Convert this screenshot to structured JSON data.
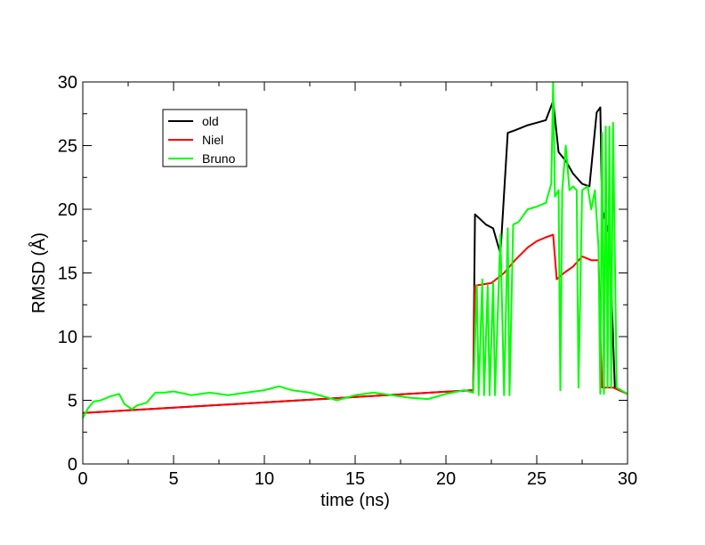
{
  "chart_data": {
    "type": "line",
    "title": "",
    "xlabel": "time (ns)",
    "ylabel": "RMSD (Å)",
    "xlim": [
      0,
      30
    ],
    "ylim": [
      0,
      30
    ],
    "x_ticks": [
      "0",
      "5",
      "10",
      "15",
      "20",
      "25",
      "30"
    ],
    "y_ticks": [
      "0",
      "5",
      "10",
      "15",
      "20",
      "25",
      "30"
    ],
    "grid": false,
    "legend_position": "top-left",
    "series": [
      {
        "name": "old",
        "color": "#000000",
        "points": [
          [
            0,
            4.0
          ],
          [
            21.5,
            5.8
          ],
          [
            21.6,
            19.6
          ],
          [
            21.9,
            19.2
          ],
          [
            22.2,
            18.8
          ],
          [
            22.6,
            18.5
          ],
          [
            23.0,
            16.5
          ],
          [
            23.4,
            26.0
          ],
          [
            23.8,
            26.2
          ],
          [
            24.5,
            26.6
          ],
          [
            25.0,
            26.8
          ],
          [
            25.5,
            27.0
          ],
          [
            25.9,
            28.5
          ],
          [
            26.2,
            24.5
          ],
          [
            26.6,
            23.8
          ],
          [
            27.0,
            22.8
          ],
          [
            27.5,
            22.0
          ],
          [
            27.9,
            21.8
          ],
          [
            28.3,
            27.6
          ],
          [
            28.5,
            28.0
          ],
          [
            28.6,
            20.0
          ],
          [
            29.0,
            18.0
          ],
          [
            29.3,
            6.0
          ],
          [
            30,
            5.5
          ]
        ]
      },
      {
        "name": "Niel",
        "color": "#ff0000",
        "points": [
          [
            0,
            4.0
          ],
          [
            21.5,
            5.8
          ],
          [
            21.6,
            14.0
          ],
          [
            22.5,
            14.2
          ],
          [
            23.2,
            15.0
          ],
          [
            23.8,
            16.0
          ],
          [
            24.5,
            17.0
          ],
          [
            25.0,
            17.5
          ],
          [
            25.5,
            17.8
          ],
          [
            25.9,
            18.0
          ],
          [
            26.1,
            14.5
          ],
          [
            26.5,
            15.0
          ],
          [
            27.0,
            15.5
          ],
          [
            27.5,
            16.3
          ],
          [
            28.0,
            16.0
          ],
          [
            28.4,
            16.0
          ],
          [
            28.6,
            6.0
          ],
          [
            29.2,
            6.0
          ],
          [
            30,
            5.5
          ]
        ]
      },
      {
        "name": "Bruno",
        "color": "#00ff00",
        "points": [
          [
            0,
            3.6
          ],
          [
            0.3,
            4.4
          ],
          [
            0.6,
            4.9
          ],
          [
            1.0,
            5.0
          ],
          [
            1.5,
            5.3
          ],
          [
            2.0,
            5.5
          ],
          [
            2.3,
            4.7
          ],
          [
            2.7,
            4.3
          ],
          [
            3.0,
            4.6
          ],
          [
            3.5,
            4.8
          ],
          [
            4.0,
            5.6
          ],
          [
            4.5,
            5.6
          ],
          [
            5.0,
            5.7
          ],
          [
            6.0,
            5.4
          ],
          [
            7.0,
            5.6
          ],
          [
            8.0,
            5.4
          ],
          [
            9.0,
            5.6
          ],
          [
            10.0,
            5.8
          ],
          [
            10.8,
            6.1
          ],
          [
            11.5,
            5.8
          ],
          [
            12.5,
            5.6
          ],
          [
            13.5,
            5.2
          ],
          [
            14.0,
            5.0
          ],
          [
            15.0,
            5.4
          ],
          [
            16.0,
            5.6
          ],
          [
            17.0,
            5.4
          ],
          [
            18.0,
            5.2
          ],
          [
            19.0,
            5.1
          ],
          [
            20.0,
            5.5
          ],
          [
            21.0,
            5.8
          ],
          [
            21.5,
            5.6
          ],
          [
            21.7,
            14.0
          ],
          [
            21.8,
            5.4
          ],
          [
            22.0,
            14.5
          ],
          [
            22.1,
            5.4
          ],
          [
            22.3,
            14.0
          ],
          [
            22.4,
            5.4
          ],
          [
            22.6,
            14.2
          ],
          [
            22.7,
            5.4
          ],
          [
            23.0,
            18.0
          ],
          [
            23.2,
            5.4
          ],
          [
            23.4,
            18.5
          ],
          [
            23.5,
            5.4
          ],
          [
            23.7,
            18.8
          ],
          [
            24.0,
            19.0
          ],
          [
            24.5,
            20.0
          ],
          [
            25.0,
            20.2
          ],
          [
            25.5,
            20.5
          ],
          [
            25.8,
            22.0
          ],
          [
            25.9,
            30.0
          ],
          [
            26.0,
            21.0
          ],
          [
            26.2,
            21.5
          ],
          [
            26.3,
            5.8
          ],
          [
            26.4,
            21.5
          ],
          [
            26.6,
            25.0
          ],
          [
            26.8,
            21.5
          ],
          [
            27.0,
            21.8
          ],
          [
            27.2,
            21.5
          ],
          [
            27.3,
            6.0
          ],
          [
            27.5,
            21.5
          ],
          [
            27.8,
            21.8
          ],
          [
            28.0,
            20.0
          ],
          [
            28.2,
            21.5
          ],
          [
            28.4,
            17.0
          ],
          [
            28.5,
            5.5
          ],
          [
            28.6,
            26.0
          ],
          [
            28.7,
            5.5
          ],
          [
            28.8,
            26.5
          ],
          [
            28.9,
            6.0
          ],
          [
            29.0,
            26.5
          ],
          [
            29.1,
            6.0
          ],
          [
            29.2,
            26.8
          ],
          [
            29.4,
            6.0
          ],
          [
            30,
            5.5
          ]
        ]
      }
    ]
  }
}
